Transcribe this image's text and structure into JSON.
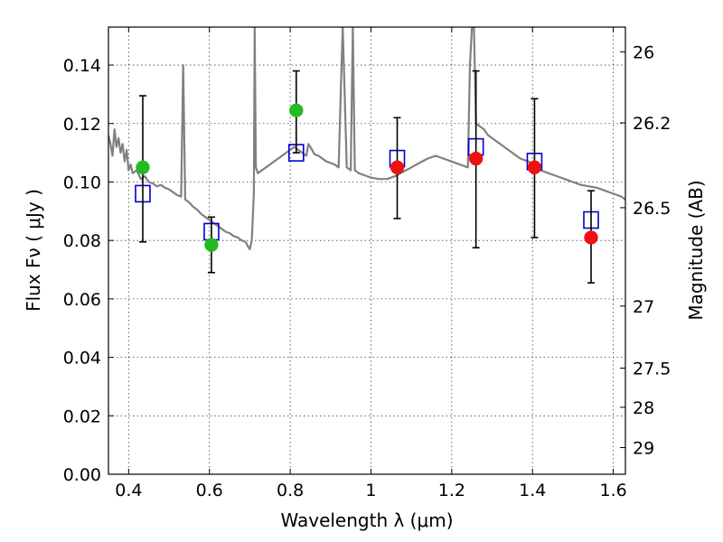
{
  "chart_data": {
    "type": "scatter",
    "title": "",
    "xlabel": "Wavelength  λ (μm)",
    "ylabel": "Flux  Fν  ( μJy )",
    "ylabel_right": "Magnitude (AB)",
    "xlim": [
      0.35,
      1.63
    ],
    "ylim": [
      0.0,
      0.153
    ],
    "grid": true,
    "x_ticks": [
      {
        "value": 0.4,
        "label": "0.4"
      },
      {
        "value": 0.6,
        "label": "0.6"
      },
      {
        "value": 0.8,
        "label": "0.8"
      },
      {
        "value": 1.0,
        "label": "1"
      },
      {
        "value": 1.2,
        "label": "1.2"
      },
      {
        "value": 1.4,
        "label": "1.4"
      },
      {
        "value": 1.6,
        "label": "1.6"
      }
    ],
    "y_ticks": [
      {
        "value": 0.0,
        "label": "0.00"
      },
      {
        "value": 0.02,
        "label": "0.02"
      },
      {
        "value": 0.04,
        "label": "0.04"
      },
      {
        "value": 0.06,
        "label": "0.06"
      },
      {
        "value": 0.08,
        "label": "0.08"
      },
      {
        "value": 0.1,
        "label": "0.10"
      },
      {
        "value": 0.12,
        "label": "0.12"
      },
      {
        "value": 0.14,
        "label": "0.14"
      }
    ],
    "right_ticks": [
      {
        "value": 26,
        "label": "26"
      },
      {
        "value": 26.2,
        "label": "26.2"
      },
      {
        "value": 26.5,
        "label": "26.5"
      },
      {
        "value": 27,
        "label": "27"
      },
      {
        "value": 27.5,
        "label": "27.5"
      },
      {
        "value": 28,
        "label": "28"
      },
      {
        "value": 29,
        "label": "29"
      }
    ],
    "colors": {
      "spectrum": "#808080",
      "model": "#0000cc",
      "optical": "#22bb22",
      "infrared": "#ee1111",
      "errorbar": "#000000"
    },
    "spectrum": [
      [
        0.35,
        0.116
      ],
      [
        0.355,
        0.113
      ],
      [
        0.36,
        0.109
      ],
      [
        0.365,
        0.118
      ],
      [
        0.37,
        0.112
      ],
      [
        0.375,
        0.115
      ],
      [
        0.38,
        0.11
      ],
      [
        0.385,
        0.113
      ],
      [
        0.39,
        0.107
      ],
      [
        0.395,
        0.111
      ],
      [
        0.4,
        0.104
      ],
      [
        0.405,
        0.106
      ],
      [
        0.41,
        0.103
      ],
      [
        0.42,
        0.104
      ],
      [
        0.43,
        0.101
      ],
      [
        0.44,
        0.102
      ],
      [
        0.45,
        0.1
      ],
      [
        0.46,
        0.0995
      ],
      [
        0.47,
        0.0985
      ],
      [
        0.48,
        0.099
      ],
      [
        0.49,
        0.098
      ],
      [
        0.5,
        0.0975
      ],
      [
        0.51,
        0.0965
      ],
      [
        0.52,
        0.0955
      ],
      [
        0.53,
        0.095
      ],
      [
        0.535,
        0.14
      ],
      [
        0.54,
        0.094
      ],
      [
        0.55,
        0.093
      ],
      [
        0.56,
        0.0915
      ],
      [
        0.57,
        0.0905
      ],
      [
        0.58,
        0.089
      ],
      [
        0.59,
        0.088
      ],
      [
        0.6,
        0.087
      ],
      [
        0.61,
        0.086
      ],
      [
        0.62,
        0.085
      ],
      [
        0.63,
        0.084
      ],
      [
        0.64,
        0.083
      ],
      [
        0.65,
        0.0825
      ],
      [
        0.66,
        0.0815
      ],
      [
        0.67,
        0.081
      ],
      [
        0.68,
        0.08
      ],
      [
        0.69,
        0.0795
      ],
      [
        0.695,
        0.078
      ],
      [
        0.7,
        0.077
      ],
      [
        0.705,
        0.08
      ],
      [
        0.71,
        0.096
      ],
      [
        0.712,
        0.153
      ],
      [
        0.715,
        0.105
      ],
      [
        0.72,
        0.103
      ],
      [
        0.73,
        0.104
      ],
      [
        0.74,
        0.105
      ],
      [
        0.75,
        0.106
      ],
      [
        0.76,
        0.107
      ],
      [
        0.77,
        0.108
      ],
      [
        0.78,
        0.109
      ],
      [
        0.79,
        0.11
      ],
      [
        0.8,
        0.111
      ],
      [
        0.81,
        0.112
      ],
      [
        0.82,
        0.111
      ],
      [
        0.83,
        0.11
      ],
      [
        0.84,
        0.109
      ],
      [
        0.845,
        0.113
      ],
      [
        0.85,
        0.112
      ],
      [
        0.86,
        0.1095
      ],
      [
        0.87,
        0.109
      ],
      [
        0.88,
        0.108
      ],
      [
        0.89,
        0.107
      ],
      [
        0.9,
        0.1065
      ],
      [
        0.91,
        0.106
      ],
      [
        0.92,
        0.105
      ],
      [
        0.925,
        0.13
      ],
      [
        0.93,
        0.153
      ],
      [
        0.935,
        0.13
      ],
      [
        0.94,
        0.105
      ],
      [
        0.95,
        0.104
      ],
      [
        0.955,
        0.153
      ],
      [
        0.96,
        0.104
      ],
      [
        0.97,
        0.103
      ],
      [
        0.98,
        0.1025
      ],
      [
        0.99,
        0.102
      ],
      [
        1.0,
        0.1015
      ],
      [
        1.02,
        0.101
      ],
      [
        1.04,
        0.101
      ],
      [
        1.06,
        0.102
      ],
      [
        1.08,
        0.1035
      ],
      [
        1.1,
        0.105
      ],
      [
        1.12,
        0.1065
      ],
      [
        1.14,
        0.108
      ],
      [
        1.16,
        0.109
      ],
      [
        1.18,
        0.108
      ],
      [
        1.2,
        0.107
      ],
      [
        1.22,
        0.106
      ],
      [
        1.24,
        0.105
      ],
      [
        1.245,
        0.14
      ],
      [
        1.25,
        0.153
      ],
      [
        1.255,
        0.153
      ],
      [
        1.26,
        0.12
      ],
      [
        1.27,
        0.119
      ],
      [
        1.28,
        0.118
      ],
      [
        1.29,
        0.116
      ],
      [
        1.3,
        0.115
      ],
      [
        1.31,
        0.114
      ],
      [
        1.32,
        0.113
      ],
      [
        1.33,
        0.112
      ],
      [
        1.34,
        0.111
      ],
      [
        1.35,
        0.11
      ],
      [
        1.36,
        0.109
      ],
      [
        1.37,
        0.108
      ],
      [
        1.38,
        0.1075
      ],
      [
        1.39,
        0.107
      ],
      [
        1.4,
        0.106
      ],
      [
        1.42,
        0.104
      ],
      [
        1.44,
        0.103
      ],
      [
        1.46,
        0.102
      ],
      [
        1.48,
        0.101
      ],
      [
        1.5,
        0.1
      ],
      [
        1.52,
        0.099
      ],
      [
        1.54,
        0.0985
      ],
      [
        1.56,
        0.098
      ],
      [
        1.58,
        0.097
      ],
      [
        1.6,
        0.096
      ],
      [
        1.62,
        0.095
      ],
      [
        1.63,
        0.094
      ]
    ],
    "series": [
      {
        "marker": "square",
        "points": [
          {
            "x": 0.435,
            "y": 0.096
          },
          {
            "x": 0.605,
            "y": 0.083
          },
          {
            "x": 0.815,
            "y": 0.11
          },
          {
            "x": 1.065,
            "y": 0.108
          },
          {
            "x": 1.26,
            "y": 0.112
          },
          {
            "x": 1.405,
            "y": 0.107
          },
          {
            "x": 1.545,
            "y": 0.087
          }
        ]
      },
      {
        "marker": "circle",
        "color_key": "optical",
        "points": [
          {
            "x": 0.435,
            "y": 0.105,
            "yerr_low": 0.0795,
            "yerr_high": 0.1295
          },
          {
            "x": 0.605,
            "y": 0.0785,
            "yerr_low": 0.069,
            "yerr_high": 0.088
          },
          {
            "x": 0.815,
            "y": 0.1245,
            "yerr_low": 0.11,
            "yerr_high": 0.138
          }
        ]
      },
      {
        "marker": "circle",
        "color_key": "infrared",
        "points": [
          {
            "x": 1.065,
            "y": 0.105,
            "yerr_low": 0.0875,
            "yerr_high": 0.122
          },
          {
            "x": 1.26,
            "y": 0.108,
            "yerr_low": 0.0775,
            "yerr_high": 0.138
          },
          {
            "x": 1.405,
            "y": 0.105,
            "yerr_low": 0.081,
            "yerr_high": 0.1285
          },
          {
            "x": 1.545,
            "y": 0.081,
            "yerr_low": 0.0655,
            "yerr_high": 0.097
          }
        ]
      }
    ]
  }
}
